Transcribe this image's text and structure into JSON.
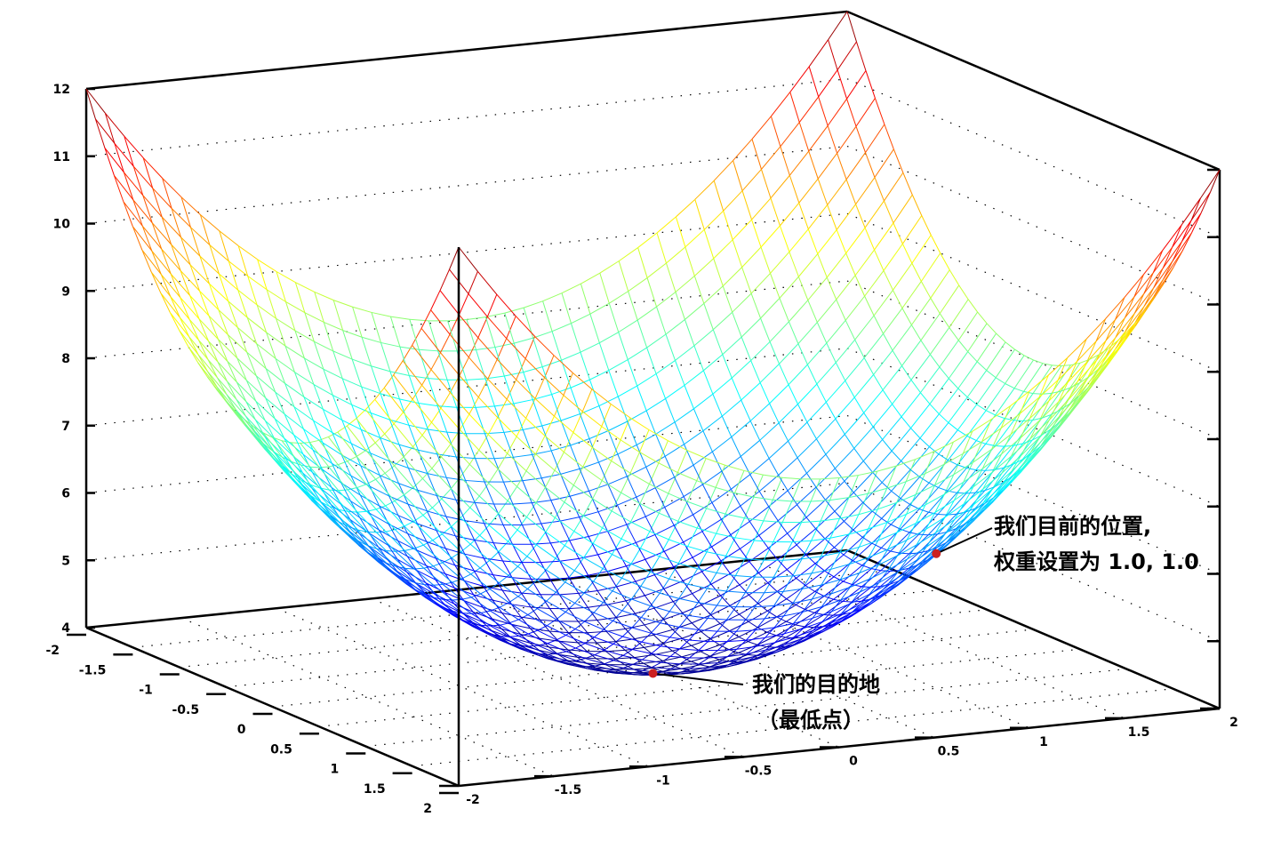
{
  "chart_data": {
    "type": "surface",
    "title": "",
    "x_axis": {
      "range": [
        -2,
        2
      ],
      "ticks": [
        "-2",
        "-1.5",
        "-1",
        "-0.5",
        "0",
        "0.5",
        "1",
        "1.5",
        "2"
      ]
    },
    "y_axis": {
      "range": [
        -2,
        2
      ],
      "ticks": [
        "-2",
        "-1.5",
        "-1",
        "-0.5",
        "0",
        "0.5",
        "1",
        "1.5",
        "2"
      ]
    },
    "z_axis": {
      "range": [
        4,
        12
      ],
      "ticks": [
        "4",
        "5",
        "6",
        "7",
        "8",
        "9",
        "10",
        "11",
        "12"
      ]
    },
    "surface": {
      "minimum": {
        "x": 0,
        "y": 0,
        "z": 4
      },
      "corner_max_z": 12,
      "colormap": "jet",
      "grid": "dotted"
    },
    "annotations": [
      {
        "lines": [
          "我们目前的位置,",
          "权重设置为 1.0, 1.0"
        ],
        "point": {
          "x": 1.0,
          "y": 1.0,
          "z": 6
        },
        "marker_color": "#cc2020"
      },
      {
        "lines": [
          "我们的目的地",
          "（最低点）"
        ],
        "point": {
          "x": 0,
          "y": 0,
          "z": 4
        },
        "marker_color": "#cc2020"
      }
    ]
  }
}
